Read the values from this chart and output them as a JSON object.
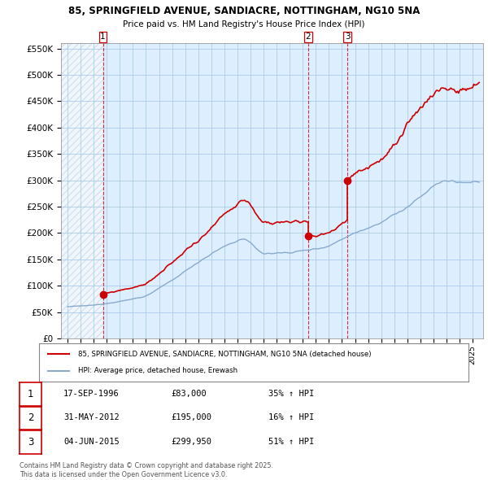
{
  "title_line1": "85, SPRINGFIELD AVENUE, SANDIACRE, NOTTINGHAM, NG10 5NA",
  "title_line2": "Price paid vs. HM Land Registry's House Price Index (HPI)",
  "ylim": [
    0,
    560000
  ],
  "yticks": [
    0,
    50000,
    100000,
    150000,
    200000,
    250000,
    300000,
    350000,
    400000,
    450000,
    500000,
    550000
  ],
  "ytick_labels": [
    "£0",
    "£50K",
    "£100K",
    "£150K",
    "£200K",
    "£250K",
    "£300K",
    "£350K",
    "£400K",
    "£450K",
    "£500K",
    "£550K"
  ],
  "transactions": [
    {
      "date": "1996-09-17",
      "price": 83000,
      "label": "1",
      "hpi_pct": "35%"
    },
    {
      "date": "2012-05-31",
      "price": 195000,
      "label": "2",
      "hpi_pct": "16%"
    },
    {
      "date": "2015-06-04",
      "price": 299950,
      "label": "3",
      "hpi_pct": "51%"
    }
  ],
  "legend_property_label": "85, SPRINGFIELD AVENUE, SANDIACRE, NOTTINGHAM, NG10 5NA (detached house)",
  "legend_hpi_label": "HPI: Average price, detached house, Erewash",
  "property_line_color": "#cc0000",
  "hpi_line_color": "#88aacc",
  "vline_color": "#cc0000",
  "grid_color": "#aaccee",
  "background_color": "#ddeeff",
  "footnote1": "Contains HM Land Registry data © Crown copyright and database right 2025.",
  "footnote2": "This data is licensed under the Open Government Licence v3.0.",
  "table_rows": [
    [
      "1",
      "17-SEP-1996",
      "£83,000",
      "35% ↑ HPI"
    ],
    [
      "2",
      "31-MAY-2012",
      "£195,000",
      "16% ↑ HPI"
    ],
    [
      "3",
      "04-JUN-2015",
      "£299,950",
      "51% ↑ HPI"
    ]
  ]
}
